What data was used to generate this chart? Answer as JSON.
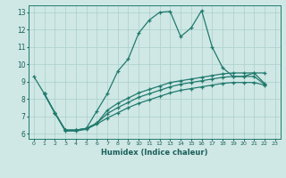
{
  "xlabel": "Humidex (Indice chaleur)",
  "bg_color": "#cfe8e5",
  "grid_color": "#aacfcc",
  "line_color": "#217a6e",
  "xlim": [
    -0.5,
    23.5
  ],
  "ylim": [
    5.7,
    13.4
  ],
  "xticks": [
    0,
    1,
    2,
    3,
    4,
    5,
    6,
    7,
    8,
    9,
    10,
    11,
    12,
    13,
    14,
    15,
    16,
    17,
    18,
    19,
    20,
    21,
    22,
    23
  ],
  "yticks": [
    6,
    7,
    8,
    9,
    10,
    11,
    12,
    13
  ],
  "series1_x": [
    0,
    1,
    2,
    3,
    4,
    5,
    6,
    7,
    8,
    9,
    10,
    11,
    12,
    13,
    14,
    15,
    16,
    17,
    18,
    19,
    20,
    21,
    22
  ],
  "series1_y": [
    9.3,
    8.3,
    7.2,
    6.2,
    6.2,
    6.3,
    7.3,
    8.3,
    9.6,
    10.3,
    11.8,
    12.55,
    13.0,
    13.05,
    11.6,
    12.1,
    13.1,
    11.0,
    9.8,
    9.3,
    9.3,
    9.5,
    9.5
  ],
  "series2_x": [
    1,
    2,
    3,
    4,
    5,
    6,
    7,
    8,
    9,
    10,
    11,
    12,
    13,
    14,
    15,
    16,
    17,
    18,
    19,
    20,
    21,
    22
  ],
  "series2_y": [
    8.3,
    7.2,
    6.2,
    6.2,
    6.3,
    6.6,
    7.35,
    7.75,
    8.05,
    8.35,
    8.55,
    8.75,
    8.95,
    9.05,
    9.15,
    9.25,
    9.35,
    9.45,
    9.5,
    9.5,
    9.5,
    8.9
  ],
  "series3_x": [
    1,
    2,
    3,
    4,
    5,
    6,
    7,
    8,
    9,
    10,
    11,
    12,
    13,
    14,
    15,
    16,
    17,
    18,
    19,
    20,
    21,
    22
  ],
  "series3_y": [
    8.3,
    7.2,
    6.2,
    6.2,
    6.3,
    6.6,
    7.15,
    7.5,
    7.8,
    8.1,
    8.3,
    8.5,
    8.7,
    8.85,
    8.95,
    9.05,
    9.15,
    9.25,
    9.3,
    9.3,
    9.3,
    8.85
  ],
  "series4_x": [
    1,
    2,
    3,
    4,
    5,
    6,
    7,
    8,
    9,
    10,
    11,
    12,
    13,
    14,
    15,
    16,
    17,
    18,
    19,
    20,
    21,
    22
  ],
  "series4_y": [
    8.3,
    7.2,
    6.15,
    6.15,
    6.25,
    6.55,
    6.9,
    7.2,
    7.5,
    7.75,
    7.95,
    8.15,
    8.35,
    8.5,
    8.6,
    8.7,
    8.8,
    8.9,
    8.95,
    8.95,
    8.95,
    8.8
  ]
}
